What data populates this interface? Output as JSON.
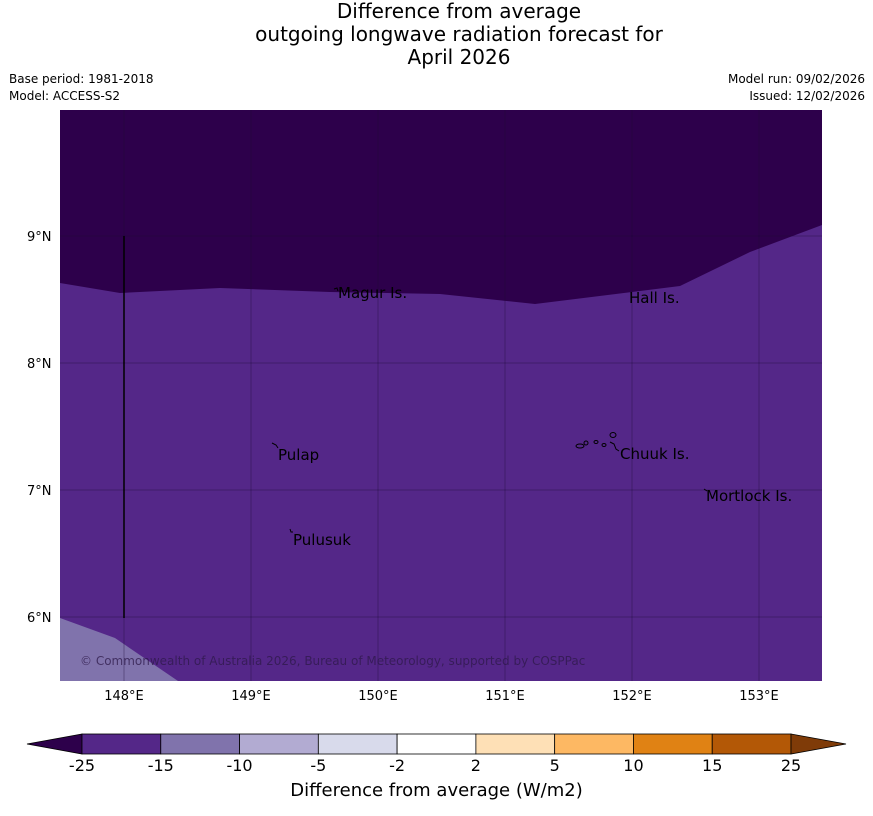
{
  "title": {
    "line1": "Difference from average",
    "line2": "outgoing longwave radiation forecast for",
    "line3": "April 2026"
  },
  "meta": {
    "base_period": "Base period: 1981-2018",
    "model": "Model: ACCESS-S2",
    "model_run": "Model run: 09/02/2026",
    "issued": "Issued: 12/02/2026"
  },
  "map": {
    "lat_ticks": [
      "9°N",
      "8°N",
      "7°N",
      "6°N"
    ],
    "lon_ticks": [
      "148°E",
      "149°E",
      "150°E",
      "151°E",
      "152°E",
      "153°E"
    ],
    "places": [
      "Magur Is.",
      "Hall Is.",
      "Pulap",
      "Chuuk Is.",
      "Mortlock Is.",
      "Pulusuk"
    ],
    "copyright": "© Commonwealth of Australia 2026, Bureau of Meteorology, supported by COSPPac"
  },
  "colorbar": {
    "label": "Difference from average (W/m2)",
    "ticks": [
      "-25",
      "-15",
      "-10",
      "-5",
      "-2",
      "2",
      "5",
      "10",
      "15",
      "25"
    ],
    "colors": [
      "#2d004b",
      "#542788",
      "#8073ac",
      "#b2abd2",
      "#d8daeb",
      "#ffffff",
      "#fee0b6",
      "#fdb863",
      "#e08214",
      "#b35806",
      "#7f3b08"
    ]
  }
}
